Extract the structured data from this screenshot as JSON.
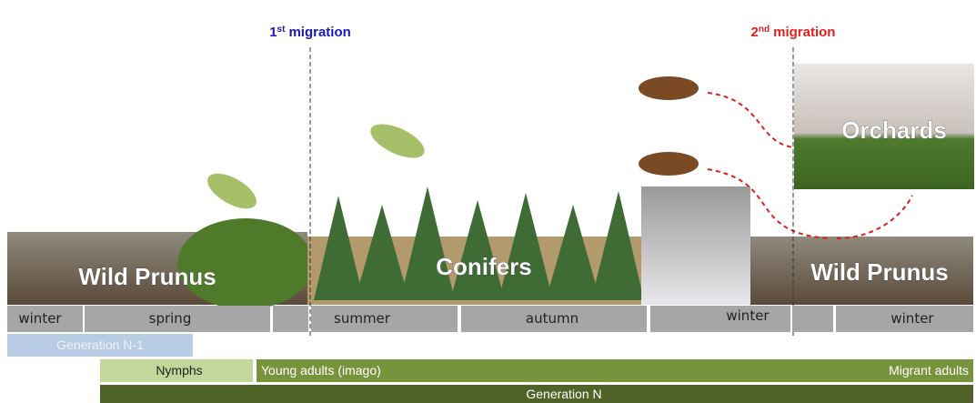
{
  "migrations": [
    {
      "number": "1",
      "suffix": "st",
      "label": "migration"
    },
    {
      "number": "2",
      "suffix": "nd",
      "label": "migration"
    }
  ],
  "habitats": [
    "Wild Prunus",
    "Conifers",
    "Wild Prunus",
    "Orchards"
  ],
  "seasons": [
    "winter",
    "spring",
    "summer",
    "autumn",
    "winter",
    "winter"
  ],
  "stages": {
    "previous_generation": "Generation N-1",
    "nymphs": "Nymphs",
    "young_adults": "Young adults (imago)",
    "migrant_adults": "Migrant adults",
    "generation": "Generation N"
  }
}
